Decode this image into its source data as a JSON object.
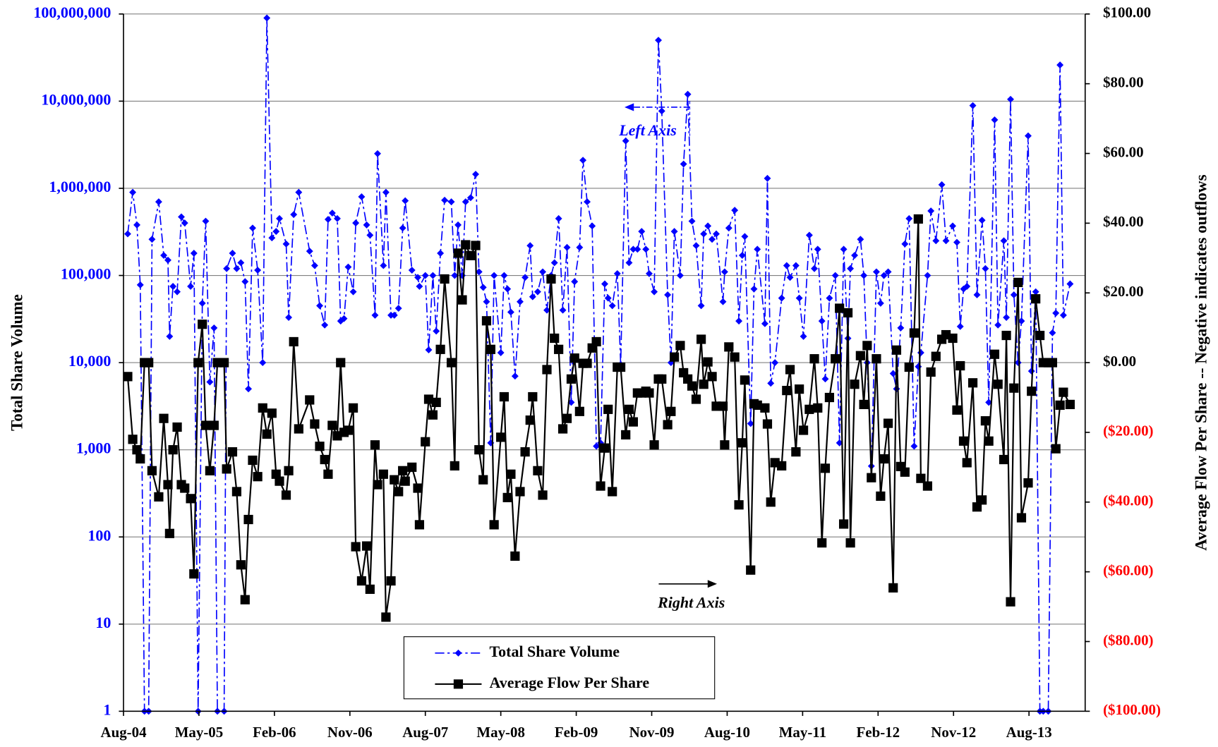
{
  "chart_data": {
    "type": "line",
    "x": [
      0.5,
      1.1,
      1.6,
      2.0,
      2.5,
      3.0,
      3.4,
      4.2,
      4.8,
      5.3,
      5.5,
      5.9,
      6.4,
      6.9,
      7.3,
      8.0,
      8.4,
      8.9,
      9.4,
      9.8,
      10.3,
      10.8,
      11.2,
      12.0,
      12.3,
      13.0,
      13.5,
      14.0,
      14.5,
      14.9,
      15.4,
      16.0,
      16.6,
      17.1,
      17.7,
      18.2,
      18.6,
      19.4,
      19.7,
      20.3,
      20.9,
      22.2,
      22.8,
      23.4,
      24.0,
      24.4,
      24.9,
      25.5,
      25.9,
      26.3,
      26.8,
      27.4,
      27.7,
      28.4,
      29.0,
      29.4,
      30.0,
      30.3,
      31.0,
      31.3,
      31.9,
      32.3,
      32.8,
      33.3,
      33.6,
      34.4,
      35.1,
      35.3,
      36.0,
      36.4,
      36.9,
      37.3,
      37.8,
      38.3,
      39.1,
      39.5,
      39.9,
      40.4,
      40.8,
      41.4,
      42.0,
      42.4,
      42.9,
      43.3,
      43.8,
      44.2,
      45.0,
      45.4,
      45.8,
      46.2,
      46.7,
      47.3,
      47.9,
      48.5,
      48.8,
      49.4,
      50.0,
      50.5,
      51.0,
      51.4,
      51.9,
      52.4,
      52.9,
      53.4,
      53.8,
      54.4,
      54.8,
      55.3,
      55.9,
      56.4,
      56.9,
      57.4,
      57.8,
      58.3,
      58.9,
      59.3,
      59.9,
      60.3,
      60.8,
      61.3,
      61.8,
      62.3,
      62.7,
      63.3,
      63.8,
      64.2,
      64.9,
      65.3,
      65.7,
      66.4,
      66.8,
      67.3,
      67.8,
      68.3,
      68.9,
      69.2,
      69.7,
      70.2,
      70.7,
      71.5,
      71.7,
      72.2,
      72.9,
      73.4,
      73.8,
      74.1,
      74.8,
      75.2,
      75.6,
      76.5,
      76.8,
      77.2,
      77.7,
      78.5,
      79.1,
      79.5,
      80.2,
      80.6,
      81.1,
      81.8,
      82.4,
      82.8,
      83.3,
      83.7,
      84.2,
      84.9,
      85.4,
      85.9,
      86.4,
      86.7,
      87.2,
      87.9,
      88.3,
      88.7,
      89.2,
      89.8,
      90.3,
      90.7,
      91.2,
      91.8,
      92.2,
      92.7,
      93.2,
      93.7,
      94.3,
      94.8,
      95.1,
      95.9,
      96.3,
      96.9,
      97.6,
      98.1,
      98.9,
      99.4,
      99.8,
      100.2,
      100.6,
      101.3,
      101.8,
      102.4,
      102.8,
      103.2,
      103.9,
      104.3,
      105.0,
      105.3,
      105.8,
      106.2,
      106.7,
      107.1,
      107.9,
      108.3,
      108.8,
      109.3,
      109.7,
      110.3,
      110.8,
      111.2,
      111.7,
      112.1,
      112.9
    ],
    "xlim": [
      0,
      114.7
    ],
    "xticks": [
      {
        "value": 0,
        "label": "Aug-04"
      },
      {
        "value": 9,
        "label": "May-05"
      },
      {
        "value": 18,
        "label": "Feb-06"
      },
      {
        "value": 27,
        "label": "Nov-06"
      },
      {
        "value": 36,
        "label": "Aug-07"
      },
      {
        "value": 45,
        "label": "May-08"
      },
      {
        "value": 54,
        "label": "Feb-09"
      },
      {
        "value": 63,
        "label": "Nov-09"
      },
      {
        "value": 72,
        "label": "Aug-10"
      },
      {
        "value": 81,
        "label": "May-11"
      },
      {
        "value": 90,
        "label": "Feb-12"
      },
      {
        "value": 99,
        "label": "Nov-12"
      },
      {
        "value": 108,
        "label": "Aug-13"
      }
    ],
    "y_label": "Total Share Volume",
    "y2_label": "Average Flow Per Share -- Negative indicates outflows",
    "ylim": [
      1,
      100000000
    ],
    "log_scale_y": true,
    "yticks": [
      1,
      10,
      100,
      {
        "value": 1000,
        "label": "1,000"
      },
      {
        "value": 10000,
        "label": "10,000"
      },
      {
        "value": 100000,
        "label": "100,000"
      },
      {
        "value": 1000000,
        "label": "1,000,000"
      },
      {
        "value": 10000000,
        "label": "10,000,000"
      },
      {
        "value": 100000000,
        "label": "100,000,000"
      }
    ],
    "y_tick_color": "#0000ff",
    "y2lim": [
      -100,
      100
    ],
    "y2ticks": [
      {
        "value": -100,
        "label": "($100.00)"
      },
      {
        "value": -80,
        "label": "($80.00)"
      },
      {
        "value": -60,
        "label": "($60.00)"
      },
      {
        "value": -40,
        "label": "($40.00)"
      },
      {
        "value": -20,
        "label": "($20.00)"
      },
      {
        "value": 0,
        "label": "$0.00"
      },
      {
        "value": 20,
        "label": "$20.00"
      },
      {
        "value": 40,
        "label": "$40.00"
      },
      {
        "value": 60,
        "label": "$60.00"
      },
      {
        "value": 80,
        "label": "$80.00"
      },
      {
        "value": 100,
        "label": "$100.00"
      }
    ],
    "y2_negative_color": "#ff0000",
    "grid": true,
    "legend": "lower center",
    "annotations": [
      "Left Axis",
      "Right Axis"
    ],
    "series": [
      {
        "name": "Total Share Volume",
        "color": "#0000ff",
        "marker": "diamond",
        "values": [
          300000,
          900000,
          380000,
          78000,
          1,
          1,
          260000,
          700000,
          170000,
          150000,
          20000,
          75000,
          65000,
          470000,
          400000,
          75000,
          180000,
          1,
          48000,
          420000,
          6000,
          25000,
          1,
          1,
          120000,
          180000,
          120000,
          140000,
          85000,
          5000,
          350000,
          115000,
          10000,
          90000000,
          270000,
          320000,
          450000,
          230000,
          33000,
          500000,
          900000,
          190000,
          130000,
          45000,
          27000,
          440000,
          520000,
          450000,
          30000,
          32000,
          125000,
          65000,
          400000,
          800000,
          380000,
          290000,
          35000,
          2500000,
          130000,
          900000,
          35000,
          35000,
          42000,
          350000,
          720000,
          115000,
          95000,
          75000,
          100000,
          14000,
          100000,
          23000,
          180000,
          730000,
          700000,
          100000,
          380000,
          100000,
          700000,
          780000,
          1450000,
          110000,
          73000,
          50000,
          1200,
          100000,
          13000,
          100000,
          70000,
          38000,
          7000,
          50000,
          95000,
          220000,
          57000,
          65000,
          110000,
          40000,
          100000,
          140000,
          450000,
          40000,
          210000,
          3500,
          85000,
          210000,
          2100000,
          700000,
          370000,
          1100,
          1200,
          80000,
          55000,
          45000,
          105000,
          9500,
          3500000,
          140000,
          200000,
          200000,
          320000,
          200000,
          105000,
          65000,
          50000000,
          7700000,
          60000,
          10000,
          320000,
          100000,
          1900000,
          12000000,
          420000,
          220000,
          45000,
          300000,
          370000,
          260000,
          300000,
          50000,
          110000,
          350000,
          560000,
          30000,
          170000,
          280000,
          2000,
          70000,
          200000,
          28000,
          1300000,
          5800,
          10000,
          55000,
          130000,
          95000,
          130000,
          55000,
          20000,
          290000,
          120000,
          200000,
          30000,
          6500,
          55000,
          100000,
          1200,
          200000,
          19000,
          120000,
          170000,
          260000,
          100000,
          10000,
          650,
          110000,
          48000,
          100000,
          110000,
          7500,
          5000,
          25000,
          230000,
          450000,
          1100,
          9000,
          13000,
          100000,
          550000,
          250000,
          1100000,
          250000,
          370000,
          240000,
          26000,
          70000,
          75000,
          8900000,
          60000,
          430000,
          120000,
          3500,
          6100000,
          27000,
          250000,
          33000,
          10500000,
          60000,
          10000,
          30000,
          4000000,
          8000,
          65000,
          1,
          1,
          1,
          22000,
          37000,
          26000000,
          35000,
          80000
        ]
      },
      {
        "name": "Average Flow Per Share",
        "color": "#000000",
        "marker": "square",
        "axis": "y2",
        "values": [
          -4,
          -22,
          -25,
          -27.6,
          0,
          0,
          -31,
          -38.5,
          -16,
          -35,
          -49,
          -25,
          -18.5,
          -35,
          -36,
          -39,
          -60.6,
          0,
          11,
          -18,
          -31,
          -18,
          0,
          0,
          -30.5,
          -25.6,
          -37,
          -58,
          -68,
          -45,
          -28,
          -32.7,
          -13,
          -20.5,
          -14.5,
          -32,
          -34,
          -38,
          -31,
          6,
          -19,
          -10.7,
          -17.6,
          -24,
          -27.8,
          -32,
          -18,
          -21,
          0,
          -20,
          -19.4,
          -13,
          -52.8,
          -62.6,
          -52.6,
          -65,
          -23.6,
          -35,
          -32,
          -73,
          -62.6,
          -33.6,
          -37,
          -31,
          -34,
          -30,
          -36,
          -46.5,
          -22.7,
          -10.5,
          -15,
          -11.4,
          3.8,
          24,
          0,
          -29.6,
          31.4,
          18,
          33.8,
          30.7,
          33.6,
          -25,
          -33.6,
          12,
          3.8,
          -46.5,
          -21.4,
          -9.8,
          -38.7,
          -32,
          -55.5,
          -37,
          -25.6,
          -16.5,
          -9.8,
          -31,
          -38,
          -2,
          24,
          7,
          3.8,
          -19,
          -16,
          -4.7,
          1.3,
          -14,
          -0.2,
          -0.2,
          4.2,
          6,
          -35.4,
          -24.5,
          -13.4,
          -37,
          -1.3,
          -1.3,
          -20.7,
          -13.4,
          -17,
          -8.7,
          -8.7,
          -8.2,
          -8.7,
          -23.6,
          -4.7,
          -4.7,
          -17.8,
          -14,
          1.6,
          4.9,
          -2.9,
          -4.7,
          -6.7,
          -10.5,
          6.7,
          -6.2,
          0.2,
          -4,
          -12.5,
          -12.5,
          -23.6,
          4.5,
          1.6,
          -40.8,
          -23,
          -5,
          -59.5,
          -11.8,
          -12.2,
          -13,
          -17.6,
          -40,
          -28.7,
          -29.6,
          -8,
          -2,
          -25.6,
          -7.6,
          -19.4,
          -13.4,
          1.1,
          -13,
          -51.7,
          -30.3,
          -10,
          1.1,
          15.6,
          -46.3,
          14.3,
          -51.7,
          -6.2,
          2,
          -12,
          4.9,
          -33,
          1.1,
          -38.3,
          -27.6,
          -17.4,
          -64.6,
          3.6,
          -29.8,
          -31.4,
          -1.3,
          8.5,
          41.2,
          -33.2,
          -35.4,
          -2.7,
          1.8,
          6.7,
          8,
          7,
          -13.6,
          -0.9,
          -22.5,
          -28.7,
          -5.8,
          -41.4,
          -39.4,
          -16.7,
          -22.5,
          2.4,
          -6.2,
          -27.8,
          7.8,
          -68.6,
          -7.3,
          23,
          -44.5,
          -34.5,
          -8.2,
          18.3,
          7.8,
          0,
          0,
          0,
          -24.7,
          -12.2,
          -8.5,
          -12
        ]
      }
    ]
  }
}
